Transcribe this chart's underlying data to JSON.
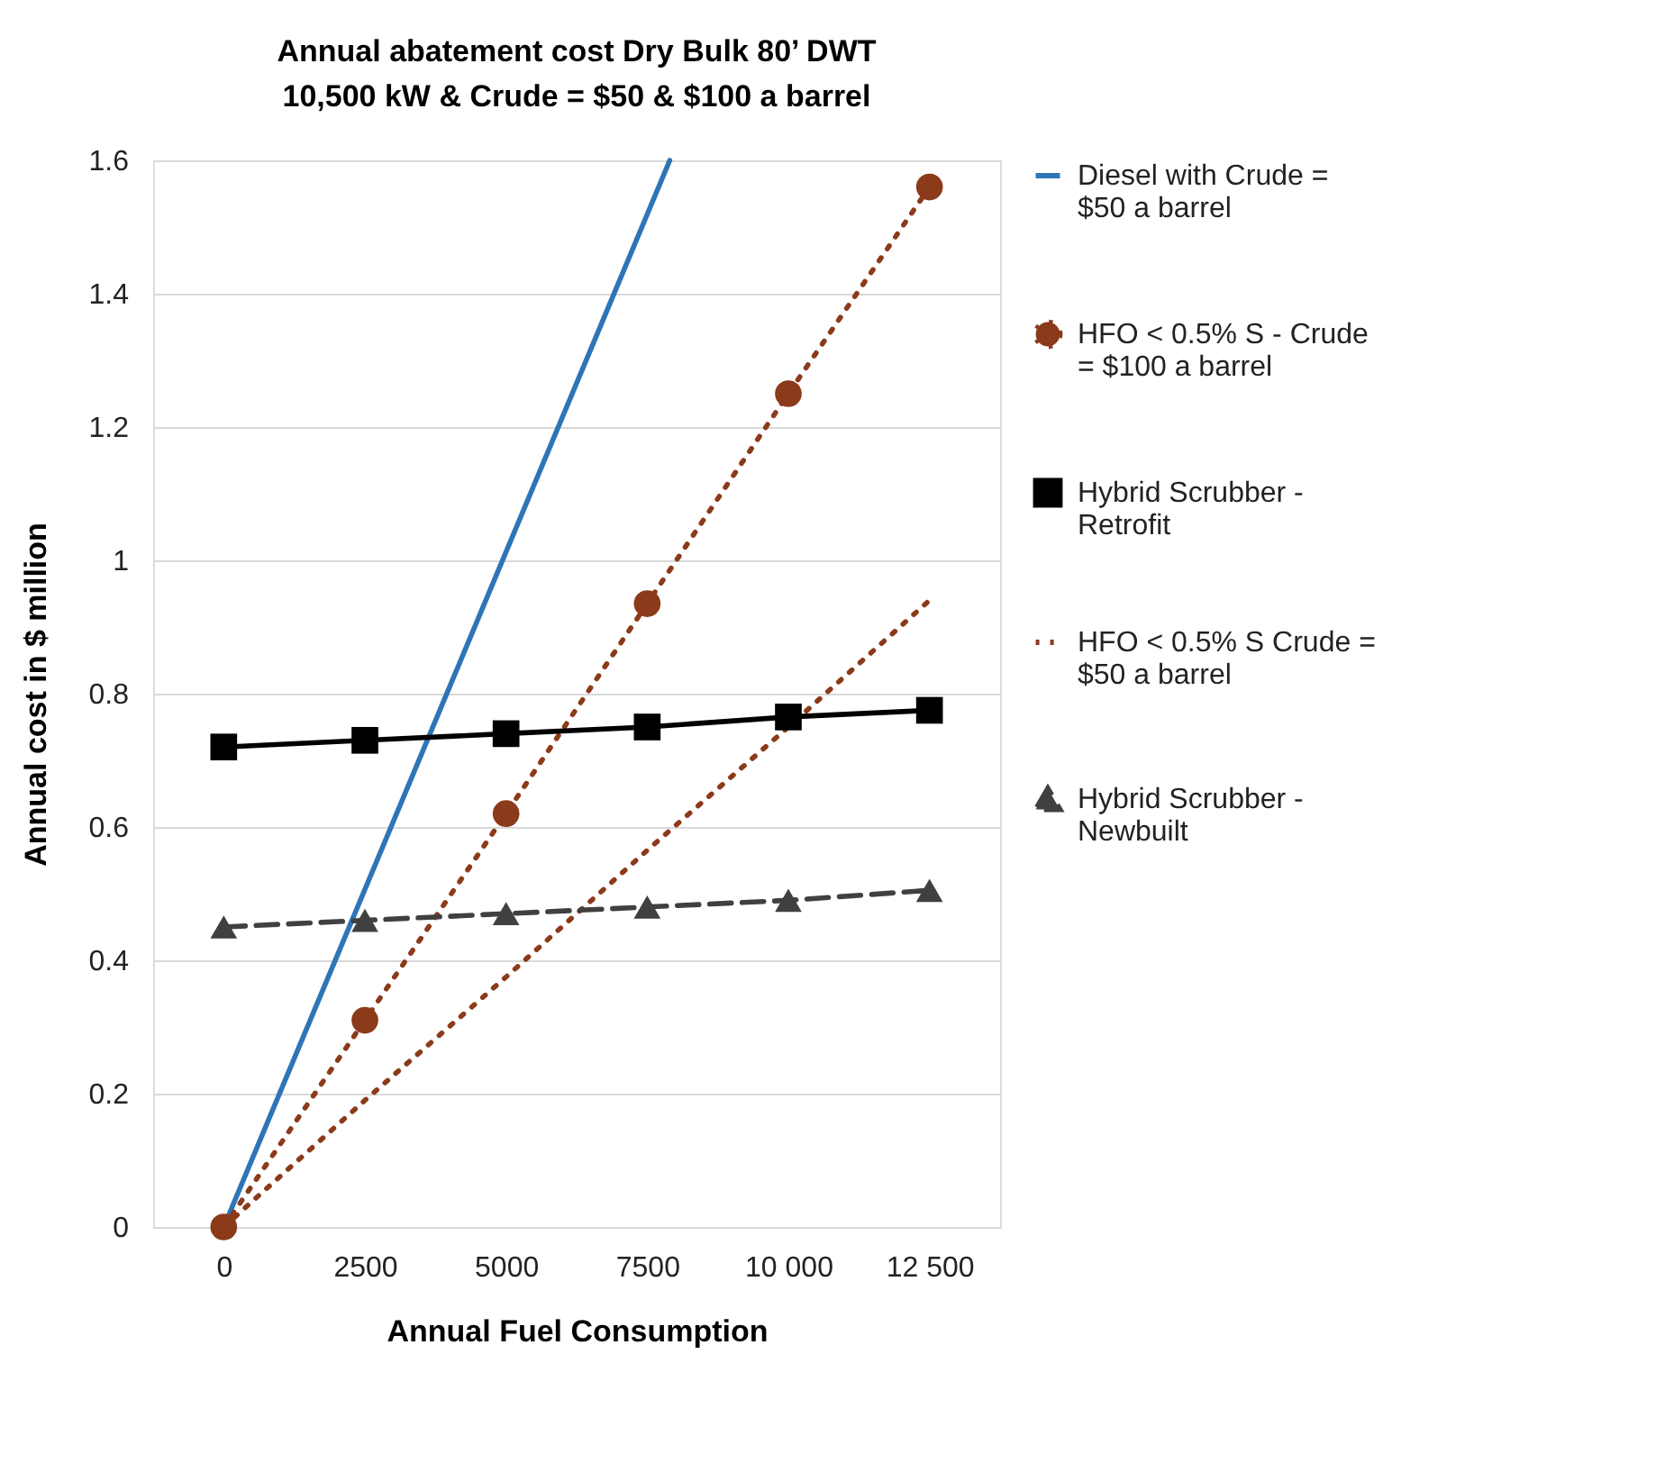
{
  "chart_data": {
    "type": "line",
    "title": "Annual abatement cost Dry Bulk 80’ DWT",
    "subtitle": "10,500 kW & Crude = $50 & $100 a barrel",
    "xlabel": "Annual Fuel Consumption",
    "ylabel": "Annual cost in $ million",
    "x": [
      0,
      2500,
      5000,
      7500,
      10000,
      12500
    ],
    "xlim": [
      -1250,
      13750
    ],
    "xticks": [
      0,
      2500,
      5000,
      7500,
      {
        "value": 10000,
        "label": "10 000"
      },
      {
        "value": 12500,
        "label": "12 500"
      }
    ],
    "ylim": [
      0,
      1.6
    ],
    "yticks": [
      0,
      0.2,
      0.4,
      0.6,
      0.8,
      1,
      1.2,
      1.4,
      1.6
    ],
    "grid": "y",
    "legend": "right",
    "series": [
      {
        "name": "Diesel with Crude = $50 a barrel",
        "color": "#2e75b6",
        "x": [
          0,
          7900
        ],
        "values": [
          0,
          1.6
        ],
        "marker": "none",
        "line_style": "solid"
      },
      {
        "name": "HFO < 0.5% S - Crude = $100 a barrel",
        "color": "#8b3a1a",
        "values": [
          0,
          0.31,
          0.62,
          0.935,
          1.25,
          1.56
        ],
        "marker": "circle",
        "line_style": "dotted"
      },
      {
        "name": "Hybrid Scrubber - Retrofit",
        "color": "#000000",
        "values": [
          0.72,
          0.73,
          0.74,
          0.75,
          0.765,
          0.775
        ],
        "marker": "square",
        "line_style": "solid"
      },
      {
        "name": "HFO < 0.5% S Crude = $50 a barrel",
        "color": "#8b3a1a",
        "values": [
          0,
          0.19,
          0.375,
          0.565,
          0.75,
          0.94
        ],
        "marker": "none",
        "line_style": "dotted"
      },
      {
        "name": "Hybrid Scrubber - Newbuilt",
        "color": "#404040",
        "values": [
          0.45,
          0.46,
          0.47,
          0.48,
          0.49,
          0.505
        ],
        "marker": "triangle",
        "line_style": "dashed"
      }
    ]
  }
}
